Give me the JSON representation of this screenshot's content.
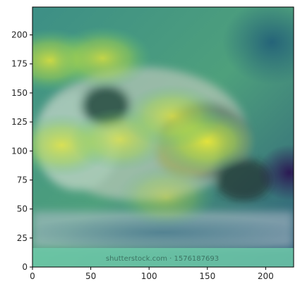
{
  "chart_data": {
    "type": "heatmap",
    "title": "",
    "xlabel": "",
    "ylabel": "",
    "xlim": [
      0,
      224
    ],
    "ylim": [
      0,
      224
    ],
    "x_ticks": [
      0,
      50,
      100,
      150,
      200
    ],
    "y_ticks": [
      0,
      25,
      50,
      75,
      100,
      125,
      150,
      175,
      200
    ],
    "colormap": "viridis",
    "background_image": "cat-photo",
    "grid": false,
    "legend": "none",
    "watermark_text": "shutterstock.com · 1576187693",
    "hotspots": [
      {
        "x": 15,
        "y": 178,
        "level": 0.85
      },
      {
        "x": 60,
        "y": 180,
        "level": 0.8
      },
      {
        "x": 25,
        "y": 105,
        "level": 0.8
      },
      {
        "x": 75,
        "y": 110,
        "level": 0.7
      },
      {
        "x": 150,
        "y": 108,
        "level": 0.95
      },
      {
        "x": 120,
        "y": 130,
        "level": 0.75
      },
      {
        "x": 115,
        "y": 60,
        "level": 0.5
      }
    ],
    "colors": {
      "cold": "#2b6f86",
      "warm": "#cfe13a",
      "cold_corner": "#3a1f55",
      "watermark_band": "#6fc9a9"
    }
  }
}
